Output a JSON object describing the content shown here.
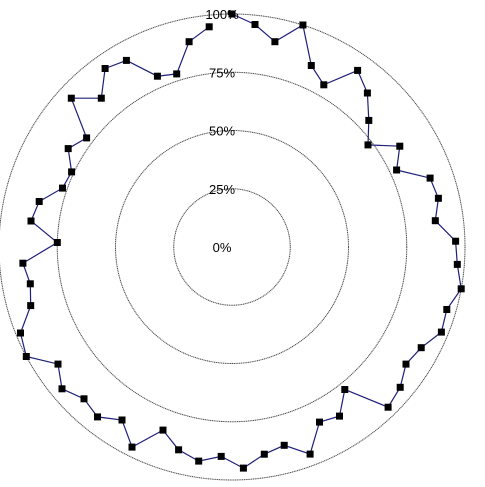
{
  "chart_data": {
    "type": "line",
    "subtype": "polar-radar",
    "title": "",
    "radial_axis": {
      "range": [
        0,
        100
      ],
      "ticks": [
        0,
        25,
        50,
        75,
        100
      ],
      "tick_labels": [
        "0%",
        "25%",
        "50%",
        "75%",
        "100%"
      ]
    },
    "grid": true,
    "legend": "none",
    "colors": {
      "series_line": "#1f1f7a",
      "marker": "#000000",
      "grid": "#4a4a4a",
      "background": "#ffffff"
    },
    "series": [
      {
        "marker": "square",
        "values": [
          100,
          96,
          90,
          100,
          85,
          80,
          93,
          88,
          80,
          73,
          84,
          78,
          90,
          91,
          88,
          96,
          97,
          100,
          96,
          97,
          92,
          90,
          94,
          96,
          78,
          86,
          84,
          95,
          88,
          90,
          95,
          90,
          93,
          90,
          84,
          96,
          88,
          93,
          91,
          95,
          90,
          100,
          98,
          90,
          88,
          90,
          75,
          87,
          85,
          77,
          76,
          82,
          78,
          94,
          85,
          94,
          92,
          80,
          78,
          90,
          95
        ]
      }
    ]
  }
}
